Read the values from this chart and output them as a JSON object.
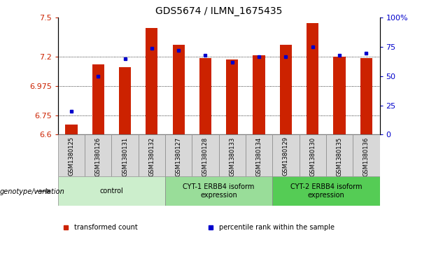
{
  "title": "GDS5674 / ILMN_1675435",
  "samples": [
    "GSM1380125",
    "GSM1380126",
    "GSM1380131",
    "GSM1380132",
    "GSM1380127",
    "GSM1380128",
    "GSM1380133",
    "GSM1380134",
    "GSM1380129",
    "GSM1380130",
    "GSM1380135",
    "GSM1380136"
  ],
  "transformed_count": [
    6.68,
    7.14,
    7.12,
    7.42,
    7.29,
    7.19,
    7.18,
    7.21,
    7.29,
    7.46,
    7.2,
    7.19
  ],
  "percentile_rank": [
    20,
    50,
    65,
    74,
    72,
    68,
    62,
    67,
    67,
    75,
    68,
    70
  ],
  "y_min": 6.6,
  "y_max": 7.5,
  "y_ticks": [
    6.6,
    6.75,
    6.975,
    7.2,
    7.5
  ],
  "y_tick_labels": [
    "6.6",
    "6.75",
    "6.975",
    "7.2",
    "7.5"
  ],
  "y2_ticks": [
    0,
    25,
    50,
    75,
    100
  ],
  "y2_tick_labels": [
    "0",
    "25",
    "50",
    "75",
    "100%"
  ],
  "bar_color": "#cc2200",
  "dot_color": "#0000cc",
  "groups": [
    {
      "label": "control",
      "start": 0,
      "end": 4,
      "color": "#cceecc"
    },
    {
      "label": "CYT-1 ERBB4 isoform\nexpression",
      "start": 4,
      "end": 8,
      "color": "#99dd99"
    },
    {
      "label": "CYT-2 ERBB4 isoform\nexpression",
      "start": 8,
      "end": 12,
      "color": "#55cc55"
    }
  ],
  "group_label_prefix": "genotype/variation",
  "legend_items": [
    {
      "label": "transformed count",
      "color": "#cc2200"
    },
    {
      "label": "percentile rank within the sample",
      "color": "#0000cc"
    }
  ],
  "sample_bg_color": "#d8d8d8",
  "plot_bg": "#ffffff"
}
